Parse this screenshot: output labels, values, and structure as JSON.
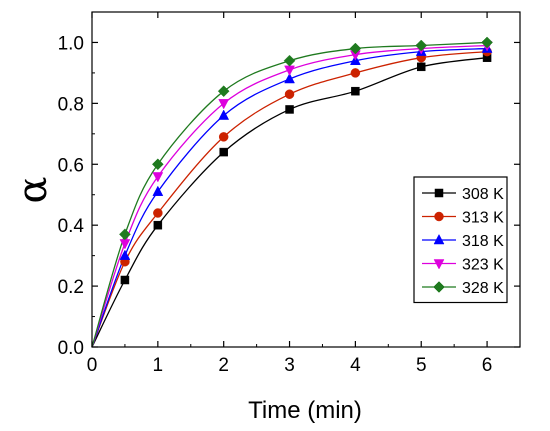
{
  "chart_data": {
    "type": "scatter",
    "xlabel": "Time (min)",
    "ylabel": "α",
    "xlim": [
      0,
      6.5
    ],
    "ylim": [
      0,
      1.1
    ],
    "xticks": [
      "0",
      "1",
      "2",
      "3",
      "4",
      "5",
      "6"
    ],
    "yticks": [
      "0.0",
      "0.2",
      "0.4",
      "0.6",
      "0.8",
      "1.0"
    ],
    "grid": false,
    "legend_position": "right-center",
    "series": [
      {
        "name": "308 K",
        "color": "#000000",
        "marker": "square",
        "x": [
          0,
          0.5,
          1,
          2,
          3,
          4,
          5,
          6
        ],
        "y": [
          0,
          0.22,
          0.4,
          0.64,
          0.78,
          0.84,
          0.92,
          0.95
        ]
      },
      {
        "name": "313 K",
        "color": "#cc2200",
        "marker": "circle",
        "x": [
          0,
          0.5,
          1,
          2,
          3,
          4,
          5,
          6
        ],
        "y": [
          0,
          0.28,
          0.44,
          0.69,
          0.83,
          0.9,
          0.95,
          0.97
        ]
      },
      {
        "name": "318 K",
        "color": "#0000ff",
        "marker": "triangle-up",
        "x": [
          0,
          0.5,
          1,
          2,
          3,
          4,
          5,
          6
        ],
        "y": [
          0,
          0.3,
          0.51,
          0.76,
          0.88,
          0.94,
          0.97,
          0.98
        ]
      },
      {
        "name": "323 K",
        "color": "#dd00dd",
        "marker": "triangle-down",
        "x": [
          0,
          0.5,
          1,
          2,
          3,
          4,
          5,
          6
        ],
        "y": [
          0,
          0.34,
          0.56,
          0.8,
          0.91,
          0.96,
          0.98,
          0.99
        ]
      },
      {
        "name": "328 K",
        "color": "#1f7a1f",
        "marker": "diamond",
        "x": [
          0,
          0.5,
          1,
          2,
          3,
          4,
          5,
          6
        ],
        "y": [
          0,
          0.37,
          0.6,
          0.84,
          0.94,
          0.98,
          0.99,
          1.0
        ]
      }
    ]
  }
}
